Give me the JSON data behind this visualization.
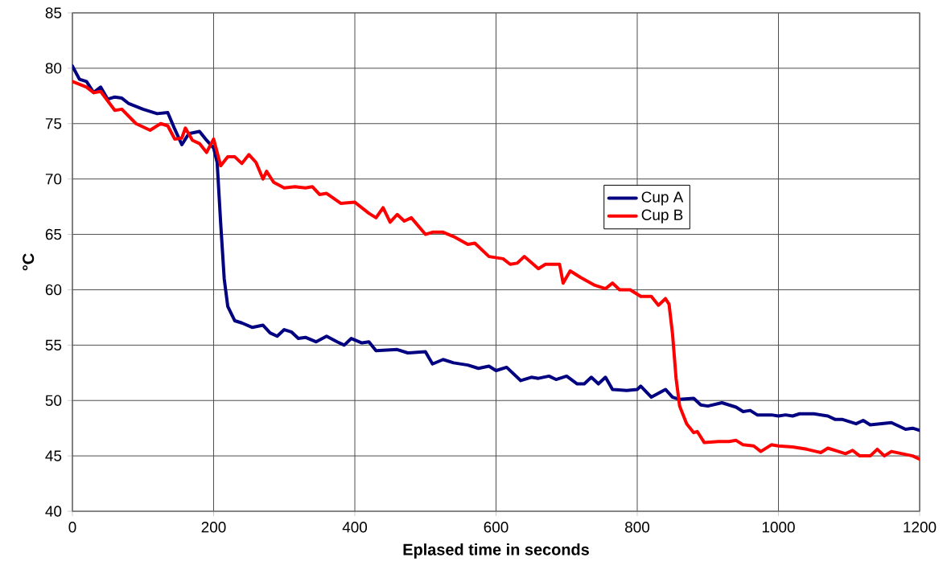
{
  "chart_data": {
    "type": "line",
    "xlabel": "Eplased time in seconds",
    "ylabel": "°C",
    "xlim": [
      0,
      1200
    ],
    "xticks": [
      0,
      200,
      400,
      600,
      800,
      1000,
      1200
    ],
    "ylim": [
      40,
      85
    ],
    "yticks": [
      40,
      45,
      50,
      55,
      60,
      65,
      70,
      75,
      80,
      85
    ],
    "grid": true,
    "legend": "right",
    "marker": "none",
    "line_style": "solid",
    "series": [
      {
        "name": "Cup A",
        "color": "#000080",
        "x": [
          0,
          10,
          20,
          30,
          40,
          50,
          60,
          70,
          80,
          100,
          120,
          135,
          145,
          155,
          165,
          180,
          190,
          200,
          205,
          210,
          215,
          220,
          230,
          240,
          255,
          270,
          280,
          290,
          300,
          310,
          320,
          330,
          345,
          360,
          375,
          385,
          395,
          410,
          420,
          430,
          460,
          475,
          500,
          510,
          525,
          540,
          560,
          575,
          590,
          600,
          615,
          635,
          650,
          660,
          675,
          685,
          700,
          715,
          725,
          735,
          745,
          755,
          765,
          785,
          800,
          805,
          820,
          840,
          850,
          860,
          880,
          890,
          900,
          920,
          940,
          950,
          960,
          970,
          990,
          1000,
          1010,
          1020,
          1030,
          1050,
          1070,
          1080,
          1090,
          1110,
          1120,
          1130,
          1160,
          1180,
          1190,
          1200
        ],
        "values": [
          80.2,
          79.0,
          78.8,
          77.8,
          78.3,
          77.2,
          77.4,
          77.3,
          76.8,
          76.3,
          75.9,
          76.0,
          74.5,
          73.1,
          74.1,
          74.3,
          73.5,
          72.8,
          71.5,
          66,
          61,
          58.5,
          57.2,
          57.0,
          56.6,
          56.8,
          56.1,
          55.8,
          56.4,
          56.2,
          55.6,
          55.7,
          55.3,
          55.8,
          55.3,
          55.0,
          55.6,
          55.2,
          55.3,
          54.5,
          54.6,
          54.3,
          54.4,
          53.3,
          53.7,
          53.4,
          53.2,
          52.9,
          53.1,
          52.7,
          53.0,
          51.8,
          52.1,
          52.0,
          52.2,
          51.9,
          52.2,
          51.5,
          51.5,
          52.1,
          51.5,
          52.1,
          51.0,
          50.9,
          51.0,
          51.3,
          50.3,
          51.0,
          50.3,
          50.1,
          50.2,
          49.6,
          49.5,
          49.8,
          49.4,
          49.0,
          49.1,
          48.7,
          48.7,
          48.6,
          48.7,
          48.6,
          48.8,
          48.8,
          48.6,
          48.3,
          48.3,
          47.9,
          48.2,
          47.8,
          48.0,
          47.4,
          47.5,
          47.3
        ]
      },
      {
        "name": "Cup B",
        "color": "#ff0000",
        "x": [
          0,
          20,
          30,
          40,
          60,
          70,
          90,
          110,
          125,
          135,
          145,
          155,
          160,
          170,
          180,
          190,
          200,
          210,
          220,
          230,
          240,
          250,
          260,
          270,
          275,
          285,
          300,
          315,
          330,
          340,
          350,
          360,
          380,
          400,
          420,
          430,
          440,
          450,
          460,
          470,
          480,
          500,
          510,
          525,
          540,
          560,
          570,
          590,
          610,
          620,
          630,
          640,
          660,
          670,
          690,
          695,
          705,
          720,
          740,
          755,
          765,
          775,
          790,
          805,
          820,
          830,
          840,
          845,
          850,
          855,
          860,
          870,
          880,
          885,
          895,
          915,
          930,
          940,
          950,
          965,
          975,
          990,
          1000,
          1020,
          1040,
          1060,
          1070,
          1085,
          1095,
          1105,
          1115,
          1130,
          1140,
          1150,
          1160,
          1175,
          1190,
          1200
        ],
        "values": [
          78.8,
          78.3,
          77.8,
          77.9,
          76.2,
          76.3,
          75.0,
          74.4,
          75.0,
          74.8,
          73.6,
          73.7,
          74.6,
          73.5,
          73.2,
          72.4,
          73.6,
          71.2,
          72.0,
          72.0,
          71.4,
          72.2,
          71.5,
          70.0,
          70.7,
          69.7,
          69.2,
          69.3,
          69.2,
          69.3,
          68.6,
          68.7,
          67.8,
          67.9,
          66.9,
          66.5,
          67.4,
          66.1,
          66.8,
          66.2,
          66.5,
          65.0,
          65.2,
          65.2,
          64.8,
          64.1,
          64.2,
          63.0,
          62.8,
          62.3,
          62.4,
          63.0,
          61.9,
          62.3,
          62.3,
          60.6,
          61.7,
          61.1,
          60.4,
          60.1,
          60.6,
          60.0,
          60.0,
          59.4,
          59.4,
          58.6,
          59.2,
          58.7,
          56,
          52,
          49.5,
          47.9,
          47.1,
          47.2,
          46.2,
          46.3,
          46.3,
          46.4,
          46.0,
          45.9,
          45.4,
          46.0,
          45.9,
          45.8,
          45.6,
          45.3,
          45.7,
          45.4,
          45.2,
          45.5,
          45.0,
          45.0,
          45.6,
          45.0,
          45.4,
          45.2,
          45.0,
          44.7
        ]
      }
    ]
  }
}
